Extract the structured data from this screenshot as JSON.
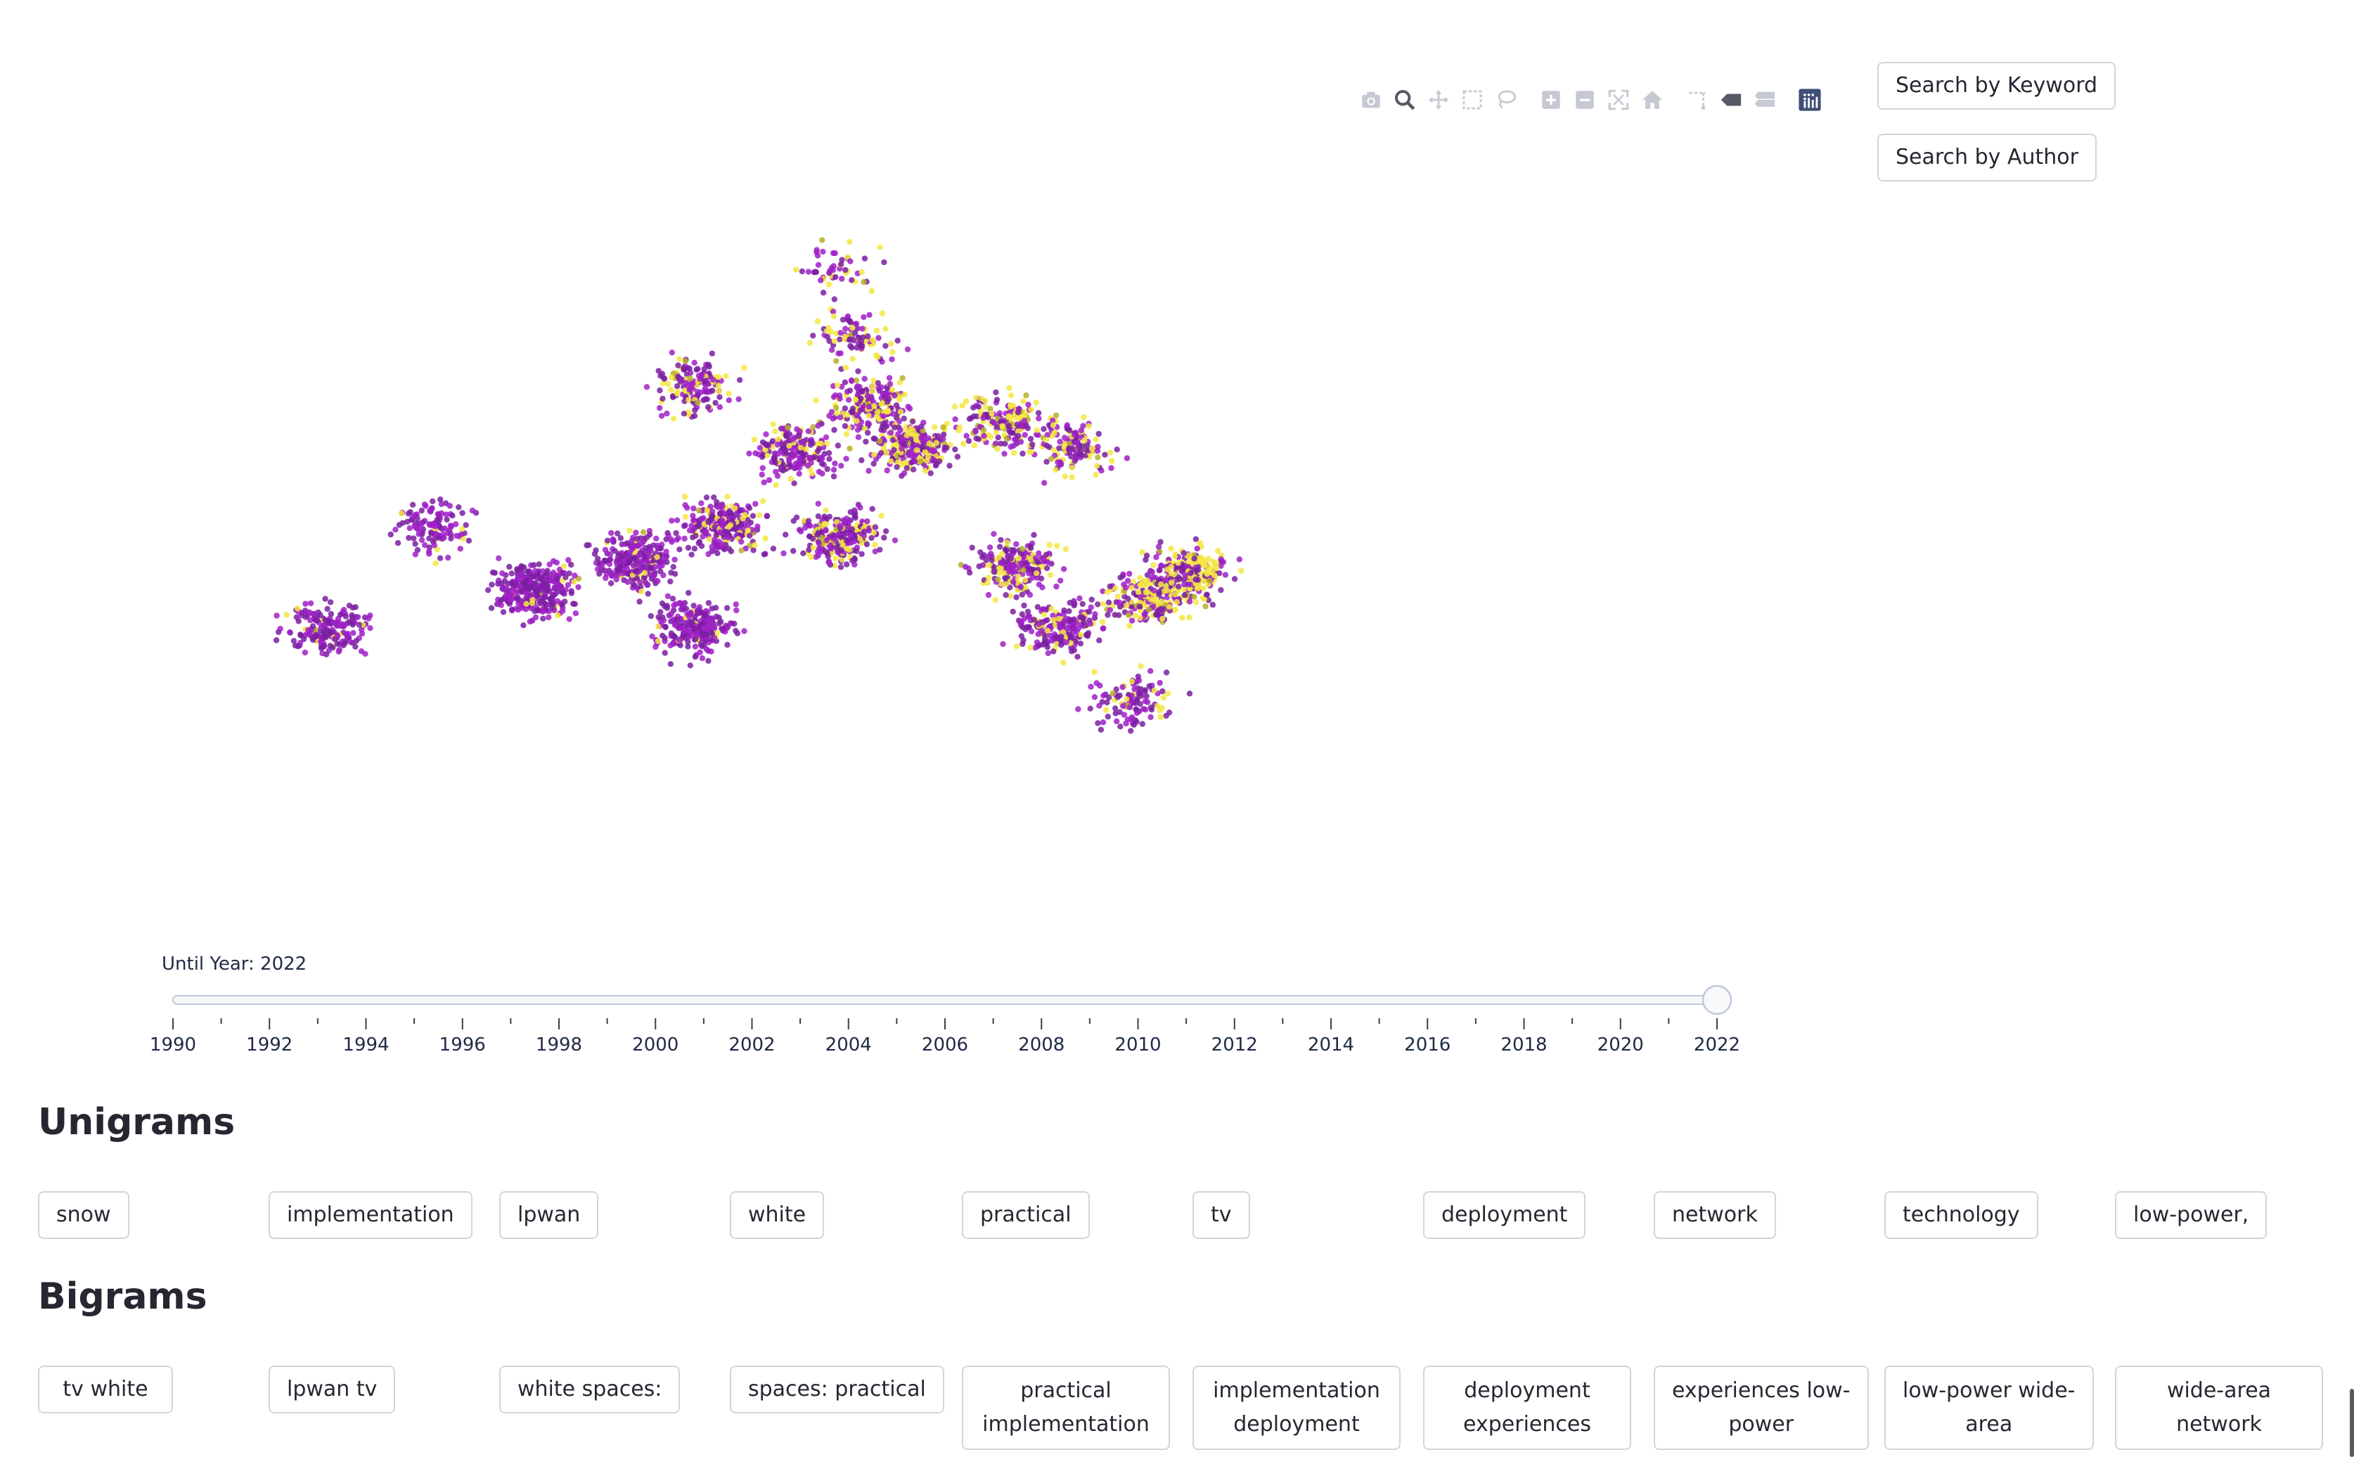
{
  "buttons": {
    "search_keyword": "Search by Keyword",
    "search_author": "Search by Author"
  },
  "modebar": [
    {
      "icon": "camera-icon",
      "label": "Download plot as png"
    },
    {
      "icon": "zoom-icon",
      "label": "Zoom"
    },
    {
      "icon": "pan-icon",
      "label": "Pan"
    },
    {
      "icon": "box-select-icon",
      "label": "Box Select"
    },
    {
      "icon": "lasso-select-icon",
      "label": "Lasso Select"
    },
    {
      "icon": "zoom-in-icon",
      "label": "Zoom in"
    },
    {
      "icon": "zoom-out-icon",
      "label": "Zoom out"
    },
    {
      "icon": "autoscale-icon",
      "label": "Autoscale"
    },
    {
      "icon": "reset-axes-icon",
      "label": "Reset axes"
    },
    {
      "icon": "spike-lines-icon",
      "label": "Toggle Spike Lines"
    },
    {
      "icon": "hover-closest-icon",
      "label": "Show closest data on hover"
    },
    {
      "icon": "hover-compare-icon",
      "label": "Compare data on hover"
    },
    {
      "icon": "plotly-logo-icon",
      "label": "Produced with Plotly"
    }
  ],
  "chart_data": {
    "type": "scatter",
    "title": "",
    "xlabel": "",
    "ylabel": "",
    "grid": false,
    "legend": "none",
    "colors": {
      "older": "#7b1fa2",
      "mid": "#a020c8",
      "recent": "#f5e642",
      "olive": "#b5b02a"
    },
    "clusters": [
      {
        "x": 0.09,
        "y": 0.62,
        "n": 180,
        "mix": 0.05
      },
      {
        "x": 0.16,
        "y": 0.45,
        "n": 120,
        "mix": 0.06
      },
      {
        "x": 0.23,
        "y": 0.56,
        "n": 320,
        "mix": 0.06
      },
      {
        "x": 0.3,
        "y": 0.51,
        "n": 260,
        "mix": 0.1
      },
      {
        "x": 0.34,
        "y": 0.62,
        "n": 240,
        "mix": 0.08
      },
      {
        "x": 0.36,
        "y": 0.45,
        "n": 240,
        "mix": 0.18
      },
      {
        "x": 0.41,
        "y": 0.33,
        "n": 200,
        "mix": 0.22
      },
      {
        "x": 0.44,
        "y": 0.47,
        "n": 240,
        "mix": 0.2
      },
      {
        "x": 0.46,
        "y": 0.25,
        "n": 200,
        "mix": 0.3
      },
      {
        "x": 0.49,
        "y": 0.32,
        "n": 260,
        "mix": 0.35
      },
      {
        "x": 0.55,
        "y": 0.28,
        "n": 180,
        "mix": 0.4
      },
      {
        "x": 0.6,
        "y": 0.32,
        "n": 140,
        "mix": 0.4
      },
      {
        "x": 0.56,
        "y": 0.52,
        "n": 220,
        "mix": 0.25
      },
      {
        "x": 0.59,
        "y": 0.62,
        "n": 200,
        "mix": 0.2
      },
      {
        "x": 0.65,
        "y": 0.57,
        "n": 180,
        "mix": 0.45
      },
      {
        "x": 0.68,
        "y": 0.53,
        "n": 220,
        "mix": 0.55
      },
      {
        "x": 0.64,
        "y": 0.74,
        "n": 110,
        "mix": 0.25
      },
      {
        "x": 0.44,
        "y": 0.03,
        "n": 50,
        "mix": 0.4
      },
      {
        "x": 0.45,
        "y": 0.14,
        "n": 90,
        "mix": 0.35
      },
      {
        "x": 0.34,
        "y": 0.22,
        "n": 150,
        "mix": 0.2
      }
    ]
  },
  "slider": {
    "label": "Until Year: 2022",
    "min": 1990,
    "max": 2022,
    "value": 2022,
    "ticks": [
      "1990",
      "1992",
      "1994",
      "1996",
      "1998",
      "2000",
      "2002",
      "2004",
      "2006",
      "2008",
      "2010",
      "2012",
      "2014",
      "2016",
      "2018",
      "2020",
      "2022"
    ]
  },
  "unigrams": {
    "title": "Unigrams",
    "items": [
      "snow",
      "implementation",
      "lpwan",
      "white",
      "practical",
      "tv",
      "deployment",
      "network",
      "technology",
      "low-power,"
    ]
  },
  "bigrams": {
    "title": "Bigrams",
    "items": [
      [
        "tv white"
      ],
      [
        "lpwan tv"
      ],
      [
        "white spaces:"
      ],
      [
        "spaces: practical"
      ],
      [
        "practical",
        "implementation"
      ],
      [
        "implementation",
        "deployment"
      ],
      [
        "deployment",
        "experiences"
      ],
      [
        "experiences low-",
        "power"
      ],
      [
        "low-power wide-",
        "area"
      ],
      [
        "wide-area",
        "network"
      ]
    ]
  }
}
